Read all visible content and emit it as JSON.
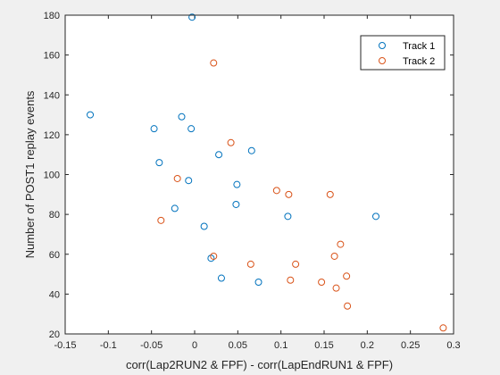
{
  "chart_data": {
    "type": "scatter",
    "title": "",
    "xlabel": "corr(Lap2RUN2 & FPF) - corr(LapEndRUN1 & FPF)",
    "ylabel": "Number of POST1 replay events",
    "xlim": [
      -0.15,
      0.3
    ],
    "ylim": [
      20,
      180
    ],
    "xticks": [
      -0.15,
      -0.1,
      -0.05,
      0,
      0.05,
      0.1,
      0.15,
      0.2,
      0.25,
      0.3
    ],
    "yticks": [
      20,
      40,
      60,
      80,
      100,
      120,
      140,
      160,
      180
    ],
    "xtick_labels": [
      "-0.15",
      "-0.1",
      "-0.05",
      "0",
      "0.05",
      "0.1",
      "0.15",
      "0.2",
      "0.25",
      "0.3"
    ],
    "ytick_labels": [
      "20",
      "40",
      "60",
      "80",
      "100",
      "120",
      "140",
      "160",
      "180"
    ],
    "grid": false,
    "legend_position": "top-right",
    "series": [
      {
        "name": "Track 1",
        "color": "#0072BD",
        "points": [
          [
            -0.121,
            130
          ],
          [
            -0.003,
            179
          ],
          [
            -0.015,
            129
          ],
          [
            -0.047,
            123
          ],
          [
            -0.004,
            123
          ],
          [
            -0.041,
            106
          ],
          [
            0.028,
            110
          ],
          [
            0.066,
            112
          ],
          [
            -0.007,
            97
          ],
          [
            0.049,
            95
          ],
          [
            -0.023,
            83
          ],
          [
            0.048,
            85
          ],
          [
            0.011,
            74
          ],
          [
            0.108,
            79
          ],
          [
            0.21,
            79
          ],
          [
            0.019,
            58
          ],
          [
            0.031,
            48
          ],
          [
            0.074,
            46
          ]
        ]
      },
      {
        "name": "Track 2",
        "color": "#D95319",
        "points": [
          [
            0.022,
            156
          ],
          [
            0.042,
            116
          ],
          [
            -0.02,
            98
          ],
          [
            0.095,
            92
          ],
          [
            0.109,
            90
          ],
          [
            0.157,
            90
          ],
          [
            -0.039,
            77
          ],
          [
            0.169,
            65
          ],
          [
            0.022,
            59
          ],
          [
            0.162,
            59
          ],
          [
            0.065,
            55
          ],
          [
            0.117,
            55
          ],
          [
            0.111,
            47
          ],
          [
            0.147,
            46
          ],
          [
            0.176,
            49
          ],
          [
            0.164,
            43
          ],
          [
            0.177,
            34
          ],
          [
            0.288,
            23
          ]
        ]
      }
    ]
  }
}
